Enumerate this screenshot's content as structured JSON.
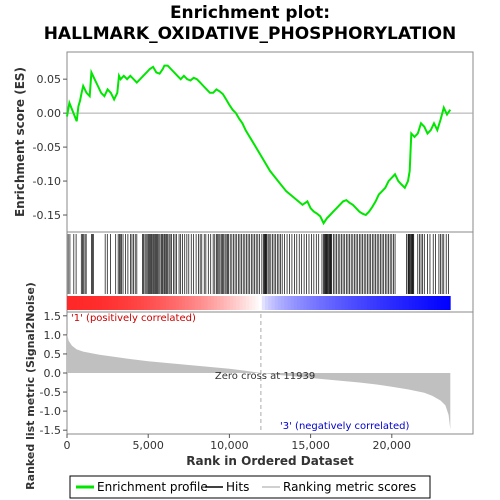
{
  "chart_data": {
    "type": "line",
    "title_line1": "Enrichment plot:",
    "title_line2": "HALLMARK_OXIDATIVE_PHOSPHORYLATION",
    "es_panel": {
      "ylabel": "Enrichment score (ES)",
      "ylim": [
        -0.175,
        0.09
      ],
      "yticks": [
        0.05,
        0.0,
        -0.05,
        -0.1,
        -0.15
      ],
      "ytick_labels": [
        "0.05",
        "0.00",
        "-0.05",
        "-0.10",
        "-0.15"
      ],
      "series": [
        {
          "name": "Enrichment profile",
          "color": "#00e600",
          "x": [
            0,
            150,
            400,
            600,
            700,
            800,
            900,
            1000,
            1200,
            1400,
            1500,
            1700,
            1900,
            2100,
            2300,
            2500,
            2700,
            2900,
            3100,
            3200,
            3300,
            3500,
            3700,
            3900,
            4100,
            4300,
            4500,
            4700,
            4900,
            5100,
            5300,
            5500,
            5700,
            5900,
            6000,
            6200,
            6400,
            6600,
            6800,
            7000,
            7200,
            7400,
            7600,
            7800,
            8000,
            8200,
            8400,
            8600,
            8800,
            9000,
            9200,
            9400,
            9600,
            9800,
            10000,
            10200,
            10400,
            10600,
            10800,
            11000,
            11500,
            12000,
            12500,
            13000,
            13500,
            14000,
            14500,
            14800,
            15000,
            15200,
            15400,
            15600,
            15800,
            16000,
            16200,
            16400,
            16600,
            16800,
            17000,
            17200,
            17400,
            17600,
            17800,
            18000,
            18200,
            18400,
            18600,
            18800,
            19000,
            19200,
            19400,
            19600,
            19800,
            20000,
            20200,
            20400,
            20600,
            20800,
            21000,
            21100,
            21200,
            21400,
            21600,
            21800,
            22000,
            22200,
            22400,
            22600,
            22800,
            23000,
            23200,
            23400,
            23600
          ],
          "y": [
            -0.005,
            0.015,
            0.0,
            -0.012,
            0.01,
            0.018,
            0.03,
            0.04,
            0.03,
            0.025,
            0.06,
            0.05,
            0.04,
            0.03,
            0.025,
            0.035,
            0.03,
            0.02,
            0.03,
            0.055,
            0.05,
            0.055,
            0.05,
            0.055,
            0.05,
            0.045,
            0.05,
            0.055,
            0.06,
            0.065,
            0.068,
            0.06,
            0.058,
            0.065,
            0.07,
            0.07,
            0.065,
            0.06,
            0.055,
            0.05,
            0.055,
            0.05,
            0.048,
            0.052,
            0.05,
            0.045,
            0.04,
            0.035,
            0.03,
            0.03,
            0.035,
            0.032,
            0.028,
            0.02,
            0.012,
            0.005,
            0.0,
            -0.008,
            -0.015,
            -0.025,
            -0.045,
            -0.065,
            -0.085,
            -0.1,
            -0.115,
            -0.125,
            -0.135,
            -0.13,
            -0.14,
            -0.145,
            -0.148,
            -0.152,
            -0.162,
            -0.155,
            -0.15,
            -0.145,
            -0.14,
            -0.135,
            -0.13,
            -0.128,
            -0.132,
            -0.135,
            -0.14,
            -0.145,
            -0.148,
            -0.15,
            -0.145,
            -0.138,
            -0.13,
            -0.12,
            -0.115,
            -0.11,
            -0.1,
            -0.095,
            -0.09,
            -0.1,
            -0.105,
            -0.11,
            -0.1,
            -0.085,
            -0.03,
            -0.035,
            -0.03,
            -0.015,
            -0.02,
            -0.03,
            -0.025,
            -0.015,
            -0.025,
            -0.01,
            0.008,
            -0.002,
            0.005
          ]
        }
      ]
    },
    "hits_panel": {
      "label": "Hits",
      "hit_positions": [
        70,
        180,
        420,
        560,
        880,
        950,
        1030,
        1110,
        1180,
        1500,
        1560,
        1620,
        2350,
        2480,
        2680,
        3000,
        3150,
        3220,
        3280,
        3350,
        3450,
        3600,
        3750,
        3900,
        4000,
        4100,
        4200,
        4300,
        4650,
        4720,
        4800,
        4870,
        4940,
        5020,
        5080,
        5150,
        5200,
        5250,
        5320,
        5400,
        5460,
        5520,
        5580,
        5650,
        5720,
        5800,
        5860,
        5920,
        6000,
        6050,
        6120,
        6200,
        6280,
        6350,
        6440,
        6550,
        6650,
        6750,
        6900,
        7000,
        7120,
        7250,
        7380,
        7500,
        7650,
        7800,
        7950,
        8100,
        8200,
        8300,
        8450,
        8550,
        8700,
        8850,
        9000,
        9100,
        9200,
        9280,
        9350,
        9420,
        9500,
        9580,
        9650,
        9730,
        9800,
        9880,
        9950,
        10050,
        10150,
        10250,
        10350,
        10450,
        10550,
        10650,
        10750,
        10850,
        10950,
        11050,
        11150,
        11250,
        11350,
        11450,
        11550,
        11650,
        11750,
        11850,
        12000,
        12100,
        12150,
        12200,
        12250,
        12300,
        12380,
        12450,
        12550,
        12650,
        12750,
        12850,
        12950,
        13050,
        13150,
        13250,
        13400,
        13550,
        13700,
        13850,
        14000,
        14150,
        14300,
        14450,
        14600,
        14750,
        14900,
        15050,
        15200,
        15350,
        15500,
        15700,
        15800,
        15850,
        15900,
        15950,
        16000,
        16050,
        16100,
        16150,
        16200,
        16250,
        16300,
        16400,
        16500,
        16600,
        16700,
        16800,
        16900,
        17000,
        17100,
        17200,
        17300,
        17400,
        17500,
        17600,
        17700,
        17800,
        17900,
        18000,
        18100,
        18200,
        18300,
        18400,
        18500,
        18600,
        18700,
        18800,
        18900,
        19000,
        19100,
        19200,
        19300,
        19400,
        19500,
        19600,
        19700,
        19800,
        19900,
        20000,
        20100,
        20200,
        20900,
        21000,
        21050,
        21100,
        21150,
        21200,
        21250,
        21300,
        21350,
        21600,
        21700,
        21800,
        21900,
        22000,
        22200,
        22350,
        22550,
        22700,
        22900,
        23000,
        23100,
        23200,
        23350,
        23500
      ]
    },
    "ranked_panel": {
      "ylabel": "Ranked list metric (Signal2Noise)",
      "ylim": [
        -1.6,
        1.6
      ],
      "yticks": [
        1.5,
        1.0,
        0.5,
        0.0,
        -0.5,
        -1.0,
        -1.5
      ],
      "ytick_labels": [
        "1.5",
        "1.0",
        "0.5",
        "0.0",
        "-0.5",
        "-1.0",
        "-1.5"
      ],
      "x": [
        0,
        100,
        300,
        600,
        1000,
        2000,
        3000,
        4000,
        5000,
        6000,
        7000,
        8000,
        9000,
        10000,
        11000,
        11939,
        13000,
        14000,
        15000,
        16000,
        17000,
        18000,
        19000,
        20000,
        21000,
        22000,
        22500,
        23000,
        23300,
        23500,
        23600
      ],
      "y": [
        1.05,
        0.85,
        0.72,
        0.62,
        0.56,
        0.48,
        0.42,
        0.36,
        0.31,
        0.27,
        0.23,
        0.19,
        0.15,
        0.11,
        0.06,
        0.0,
        -0.05,
        -0.09,
        -0.13,
        -0.17,
        -0.21,
        -0.25,
        -0.3,
        -0.36,
        -0.43,
        -0.52,
        -0.6,
        -0.72,
        -0.85,
        -1.1,
        -1.48
      ],
      "zero_cross": 11939,
      "zero_cross_label": "Zero cross at 11939",
      "pos_label": "'1' (positively correlated)",
      "neg_label": "'3' (negatively correlated)"
    },
    "x_axis": {
      "xlabel": "Rank in Ordered Dataset",
      "xlim": [
        0,
        25000
      ],
      "xticks": [
        0,
        5000,
        10000,
        15000,
        20000
      ],
      "xtick_labels": [
        "0",
        "5,000",
        "10,000",
        "15,000",
        "20,000"
      ],
      "n_genes": 23600
    },
    "legend": [
      {
        "label": "Enrichment profile",
        "color": "#00e600"
      },
      {
        "label": "Hits",
        "color": "#000000"
      },
      {
        "label": "Ranking metric scores",
        "color": "#c0c0c0"
      }
    ],
    "colors": {
      "profile": "#00e600",
      "positive": "#ff0000",
      "negative": "#0000ff",
      "metric_fill": "#c0c0c0",
      "pos_text": "#cc0000",
      "neg_text": "#0000cc"
    }
  }
}
